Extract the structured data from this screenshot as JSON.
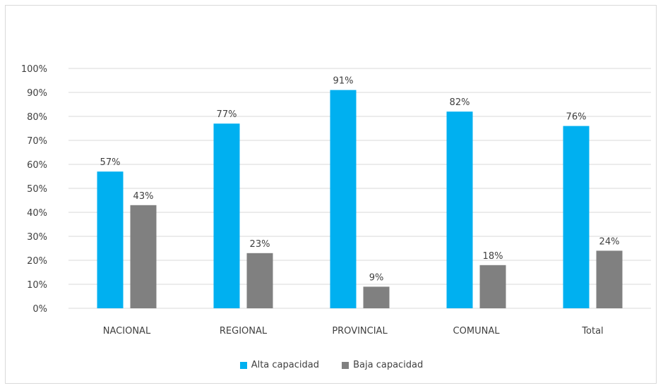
{
  "colors": {
    "alta": "#00b0f0",
    "baja": "#808080",
    "grid": "#d9d9d9",
    "text": "#404040"
  },
  "chart_data": {
    "type": "bar",
    "title": "",
    "xlabel": "",
    "ylabel": "",
    "ylim": [
      0,
      100
    ],
    "yticks": [
      "0%",
      "10%",
      "20%",
      "30%",
      "40%",
      "50%",
      "60%",
      "70%",
      "80%",
      "90%",
      "100%"
    ],
    "categories": [
      "NACIONAL",
      "REGIONAL",
      "PROVINCIAL",
      "COMUNAL",
      "Total"
    ],
    "series": [
      {
        "name": "Alta capacidad",
        "values": [
          57,
          77,
          91,
          82,
          76
        ],
        "labels": [
          "57%",
          "77%",
          "91%",
          "82%",
          "76%"
        ]
      },
      {
        "name": "Baja capacidad",
        "values": [
          43,
          23,
          9,
          18,
          24
        ],
        "labels": [
          "43%",
          "23%",
          "9%",
          "18%",
          "24%"
        ]
      }
    ],
    "grid": true,
    "legend_position": "bottom"
  }
}
